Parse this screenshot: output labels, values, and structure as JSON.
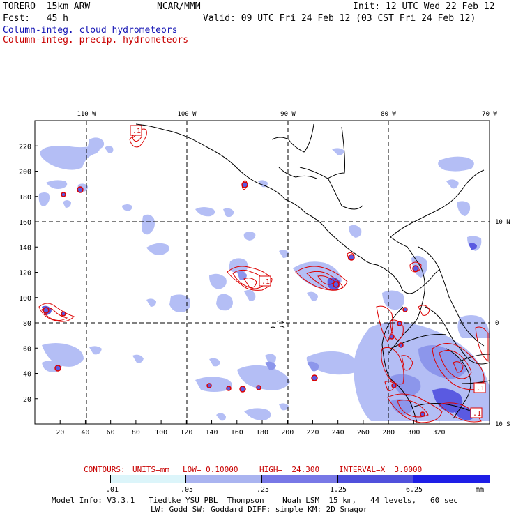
{
  "header": {
    "model": "TORERO  15km ARW",
    "center": "NCAR/MMM",
    "init": "Init: 12 UTC Wed 22 Feb 12",
    "fcst": "Fcst:   45 h",
    "valid": "Valid: 09 UTC Fri 24 Feb 12 (03 CST Fri 24 Feb 12)",
    "field_cloud": "Column-integ. cloud hydrometeors",
    "field_precip": "Column-integ. precip. hydrometeors"
  },
  "map": {
    "lon_labels": [
      "110 W",
      "100 W",
      "90 W",
      "80 W",
      "70 W"
    ],
    "lat_labels": [
      "10 N",
      "0",
      "10 S"
    ],
    "x_ticks": [
      "20",
      "40",
      "60",
      "80",
      "100",
      "120",
      "140",
      "160",
      "180",
      "200",
      "220",
      "240",
      "260",
      "280",
      "300",
      "320"
    ],
    "y_ticks": [
      "220",
      "200",
      "180",
      "160",
      "140",
      "120",
      "100",
      "80",
      "60",
      "40",
      "20"
    ],
    "contour_labels": [
      ".1",
      ".1",
      ".1",
      ".1"
    ]
  },
  "contour_info": {
    "contours": "CONTOURS:",
    "units": "UNITS=mm",
    "low": "LOW= 0.10000",
    "high": "HIGH=  24.300",
    "interval": "INTERVAL=X  3.0000"
  },
  "colorbar": {
    "labels": [
      ".01",
      ".05",
      ".25",
      "1.25",
      "6.25"
    ],
    "unit": "mm",
    "colors": [
      "#ffffff",
      "#dcf5fa",
      "#aab4f0",
      "#7878e6",
      "#5050dc",
      "#1e1ee6"
    ]
  },
  "footer": {
    "line1": "Model Info: V3.3.1   Tiedtke YSU PBL  Thompson    Noah LSM  15 km,   44 levels,   60 sec",
    "line2": "LW: Godd SW: Goddard DIFF: simple KM: 2D Smagor"
  },
  "colors": {
    "cloud_light": "#b4bef5",
    "cloud_mid": "#8c96eb",
    "cloud_dark": "#5a5ae1",
    "precip": "#dc0000"
  }
}
